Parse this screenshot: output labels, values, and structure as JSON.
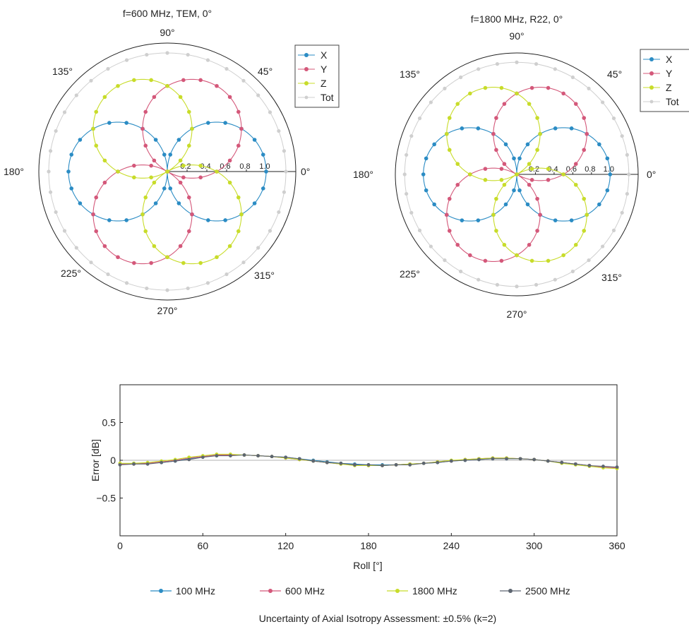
{
  "chart_data": [
    {
      "type": "polar",
      "title": "f=600 MHz, TEM, 0°",
      "angle_labels": [
        "0°",
        "45°",
        "90°",
        "135°",
        "180°",
        "225°",
        "270°",
        "315°"
      ],
      "radial_ticks": [
        "0.2",
        "0.4",
        "0.6",
        "0.8",
        "1.0"
      ],
      "rlim": [
        0,
        1.3
      ],
      "legend": {
        "placement": "top-right",
        "entries": [
          "X",
          "Y",
          "Z",
          "Tot"
        ]
      },
      "colors": {
        "X": "#2b8cc4",
        "Y": "#d4587a",
        "Z": "#c8dc2a",
        "Tot": "#cfcfcf"
      },
      "series": [
        {
          "name": "X",
          "rotation_deg": 0
        },
        {
          "name": "Y",
          "rotation_deg": 60
        },
        {
          "name": "Z",
          "rotation_deg": 120
        },
        {
          "name": "Tot",
          "value": 1.2
        }
      ]
    },
    {
      "type": "polar",
      "title": "f=1800 MHz, R22, 0°",
      "angle_labels": [
        "0°",
        "45°",
        "90°",
        "135°",
        "180°",
        "225°",
        "270°",
        "315°"
      ],
      "radial_ticks": [
        "0.2",
        "0.4",
        "0.6",
        "0.8",
        "1.0"
      ],
      "rlim": [
        0,
        1.3
      ],
      "legend": {
        "placement": "top-right",
        "entries": [
          "X",
          "Y",
          "Z",
          "Tot"
        ]
      },
      "colors": {
        "X": "#2b8cc4",
        "Y": "#d4587a",
        "Z": "#c8dc2a",
        "Tot": "#cfcfcf"
      },
      "series": [
        {
          "name": "X",
          "rotation_deg": 0
        },
        {
          "name": "Y",
          "rotation_deg": 60
        },
        {
          "name": "Z",
          "rotation_deg": 120
        },
        {
          "name": "Tot",
          "value": 1.2
        }
      ]
    },
    {
      "type": "line",
      "xlabel": "Roll [°]",
      "ylabel": "Error [dB]",
      "xlim": [
        0,
        360
      ],
      "ylim": [
        -1.0,
        1.0
      ],
      "xticks": [
        0,
        60,
        120,
        180,
        240,
        300,
        360
      ],
      "yticks": [
        0.5,
        0,
        -0.5
      ],
      "ytick_labels": [
        "0.5",
        "0",
        "−0.5"
      ],
      "legend": {
        "placement": "bottom"
      },
      "x": [
        0,
        10,
        20,
        30,
        40,
        50,
        60,
        70,
        80,
        90,
        100,
        110,
        120,
        130,
        140,
        150,
        160,
        170,
        180,
        190,
        200,
        210,
        220,
        230,
        240,
        250,
        260,
        270,
        280,
        290,
        300,
        310,
        320,
        330,
        340,
        350,
        360
      ],
      "series": [
        {
          "name": "100 MHz",
          "color": "#2b8cc4",
          "values": [
            -0.05,
            -0.04,
            -0.04,
            -0.03,
            -0.01,
            0.02,
            0.05,
            0.06,
            0.07,
            0.07,
            0.06,
            0.05,
            0.04,
            0.02,
            0.0,
            -0.02,
            -0.04,
            -0.05,
            -0.06,
            -0.06,
            -0.06,
            -0.05,
            -0.04,
            -0.03,
            -0.01,
            0.0,
            0.01,
            0.02,
            0.02,
            0.02,
            0.01,
            -0.01,
            -0.03,
            -0.05,
            -0.07,
            -0.09,
            -0.1
          ]
        },
        {
          "name": "600 MHz",
          "color": "#d4587a",
          "values": [
            -0.05,
            -0.05,
            -0.04,
            -0.02,
            0.0,
            0.03,
            0.05,
            0.07,
            0.07,
            0.07,
            0.06,
            0.05,
            0.03,
            0.01,
            -0.01,
            -0.03,
            -0.05,
            -0.06,
            -0.07,
            -0.07,
            -0.06,
            -0.05,
            -0.04,
            -0.02,
            -0.01,
            0.01,
            0.02,
            0.03,
            0.03,
            0.02,
            0.01,
            -0.01,
            -0.03,
            -0.05,
            -0.07,
            -0.09,
            -0.1
          ]
        },
        {
          "name": "1800 MHz",
          "color": "#c8dc2a",
          "values": [
            -0.04,
            -0.04,
            -0.03,
            -0.01,
            0.01,
            0.04,
            0.06,
            0.08,
            0.08,
            0.07,
            0.06,
            0.05,
            0.03,
            0.01,
            -0.01,
            -0.03,
            -0.05,
            -0.07,
            -0.07,
            -0.07,
            -0.06,
            -0.05,
            -0.04,
            -0.02,
            0.0,
            0.01,
            0.02,
            0.03,
            0.03,
            0.02,
            0.01,
            -0.01,
            -0.04,
            -0.06,
            -0.08,
            -0.1,
            -0.11
          ]
        },
        {
          "name": "2500 MHz",
          "color": "#5d6570",
          "values": [
            -0.06,
            -0.05,
            -0.05,
            -0.03,
            -0.01,
            0.01,
            0.04,
            0.06,
            0.06,
            0.07,
            0.06,
            0.05,
            0.04,
            0.02,
            -0.01,
            -0.03,
            -0.04,
            -0.06,
            -0.06,
            -0.07,
            -0.06,
            -0.06,
            -0.04,
            -0.03,
            -0.01,
            0.0,
            0.01,
            0.02,
            0.02,
            0.02,
            0.01,
            -0.01,
            -0.03,
            -0.05,
            -0.07,
            -0.08,
            -0.09
          ]
        }
      ]
    }
  ],
  "note": "Uncertainty of Axial Isotropy Assessment: ±0.5% (k=2)"
}
